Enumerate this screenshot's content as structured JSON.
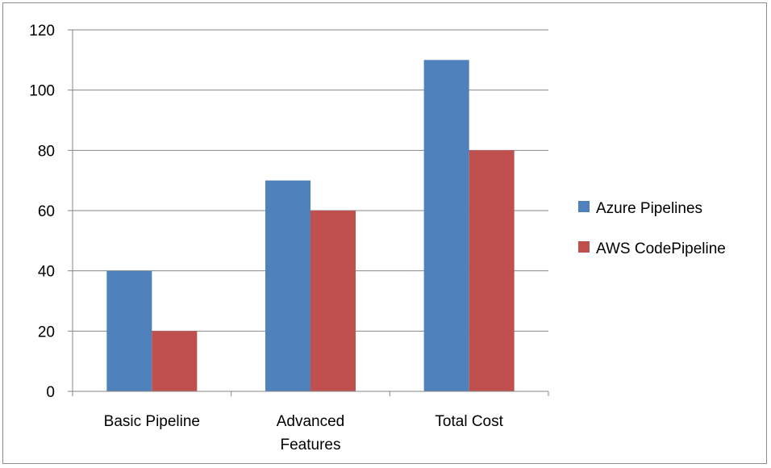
{
  "chart_data": {
    "type": "bar",
    "title": "",
    "xlabel": "",
    "ylabel": "",
    "categories": [
      [
        "Basic Pipeline"
      ],
      [
        "Advanced",
        "Features"
      ],
      [
        "Total Cost"
      ]
    ],
    "series": [
      {
        "name": "Azure Pipelines",
        "values": [
          40,
          70,
          110
        ],
        "color": "#4f81bd"
      },
      {
        "name": "AWS CodePipeline",
        "values": [
          20,
          60,
          80
        ],
        "color": "#c0504d"
      }
    ],
    "ylim": [
      0,
      120
    ],
    "yticks": [
      "0",
      "20",
      "40",
      "60",
      "80",
      "100",
      "120"
    ],
    "grid": true,
    "legend_position": "right"
  }
}
